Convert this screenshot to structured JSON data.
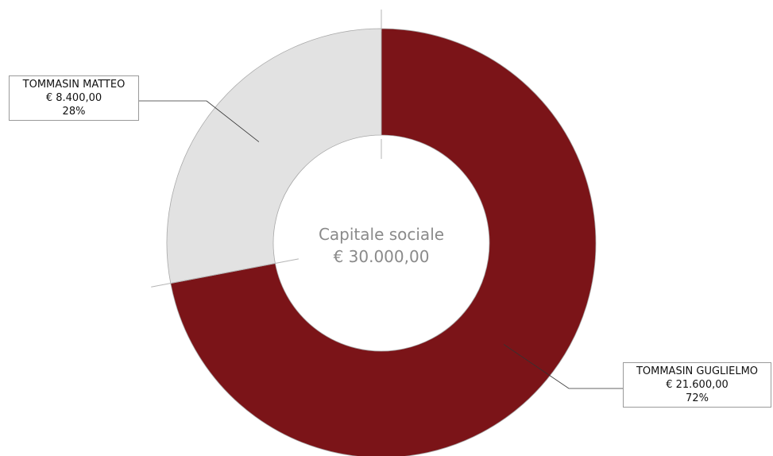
{
  "chart_data": {
    "type": "pie",
    "variant": "donut",
    "center_text": {
      "line1": "Capitale sociale",
      "line2": "€ 30.000,00"
    },
    "categories": [
      "TOMMASIN GUGLIELMO",
      "TOMMASIN MATTEO"
    ],
    "values": [
      21600,
      8400
    ],
    "value_labels": [
      "€ 21.600,00",
      "€ 8.400,00"
    ],
    "percent_labels": [
      "72%",
      "28%"
    ],
    "colors": [
      "#7b1418",
      "#e2e2e2"
    ],
    "legend": "none"
  }
}
